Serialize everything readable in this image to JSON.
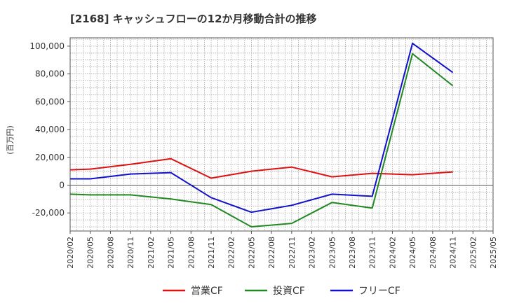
{
  "chart_data": {
    "type": "line",
    "title": "[2168]  キャッシュフローの12か月移動合計の推移",
    "ylabel": "(百万円)",
    "xlabel": "",
    "ylim": [
      -33000,
      106000
    ],
    "yticks": [
      -20000,
      0,
      20000,
      40000,
      60000,
      80000,
      100000
    ],
    "ytick_labels": [
      "-20,000",
      "0",
      "20,000",
      "40,000",
      "60,000",
      "80,000",
      "100,000"
    ],
    "x_ticks": [
      "2020/02",
      "2020/05",
      "2020/08",
      "2020/11",
      "2021/02",
      "2021/05",
      "2021/08",
      "2021/11",
      "2022/02",
      "2022/05",
      "2022/08",
      "2022/11",
      "2023/02",
      "2023/05",
      "2023/08",
      "2023/11",
      "2024/02",
      "2024/05",
      "2024/08",
      "2024/11",
      "2025/02",
      "2025/05"
    ],
    "grid": true,
    "legend_position": "bottom",
    "series": [
      {
        "name": "営業CF",
        "color": "#dd1111",
        "points": [
          {
            "x": "2020/02",
            "y": 11000
          },
          {
            "x": "2020/05",
            "y": 11500
          },
          {
            "x": "2020/11",
            "y": 15000
          },
          {
            "x": "2021/05",
            "y": 19000
          },
          {
            "x": "2021/11",
            "y": 5000
          },
          {
            "x": "2022/05",
            "y": 10000
          },
          {
            "x": "2022/11",
            "y": 13000
          },
          {
            "x": "2023/05",
            "y": 6000
          },
          {
            "x": "2023/11",
            "y": 8500
          },
          {
            "x": "2024/05",
            "y": 7500
          },
          {
            "x": "2024/11",
            "y": 9500
          }
        ]
      },
      {
        "name": "投資CF",
        "color": "#228822",
        "points": [
          {
            "x": "2020/02",
            "y": -6500
          },
          {
            "x": "2020/05",
            "y": -7000
          },
          {
            "x": "2020/11",
            "y": -7000
          },
          {
            "x": "2021/05",
            "y": -10000
          },
          {
            "x": "2021/11",
            "y": -14000
          },
          {
            "x": "2022/05",
            "y": -30000
          },
          {
            "x": "2022/11",
            "y": -27500
          },
          {
            "x": "2023/05",
            "y": -12500
          },
          {
            "x": "2023/11",
            "y": -16500
          },
          {
            "x": "2024/05",
            "y": 94500
          },
          {
            "x": "2024/11",
            "y": 71500
          }
        ]
      },
      {
        "name": "フリーCF",
        "color": "#1111cc",
        "points": [
          {
            "x": "2020/02",
            "y": 4500
          },
          {
            "x": "2020/05",
            "y": 4500
          },
          {
            "x": "2020/11",
            "y": 8000
          },
          {
            "x": "2021/05",
            "y": 9000
          },
          {
            "x": "2021/11",
            "y": -9000
          },
          {
            "x": "2022/05",
            "y": -19500
          },
          {
            "x": "2022/11",
            "y": -14500
          },
          {
            "x": "2023/05",
            "y": -6500
          },
          {
            "x": "2023/11",
            "y": -8000
          },
          {
            "x": "2024/05",
            "y": 102000
          },
          {
            "x": "2024/11",
            "y": 81000
          }
        ]
      }
    ]
  }
}
